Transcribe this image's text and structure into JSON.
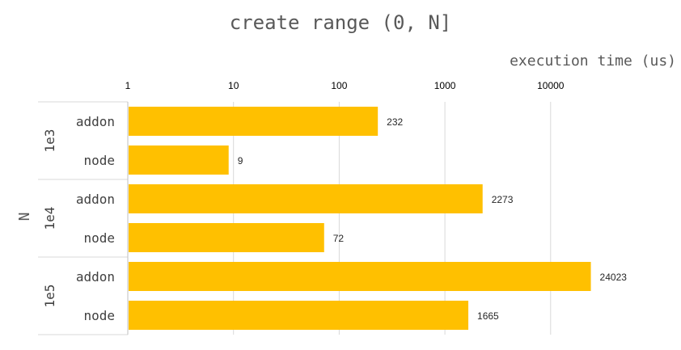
{
  "chart_data": {
    "type": "bar",
    "orientation": "horizontal",
    "title": "create range (0, N]",
    "xlabel": "execution time (us)",
    "ylabel": "N",
    "x_scale": "log",
    "xlim": [
      1,
      100000
    ],
    "x_ticks": [
      "1",
      "10",
      "100",
      "1000",
      "10000"
    ],
    "grid": true,
    "bar_color": "#FFC000",
    "groups": [
      {
        "name": "1e3",
        "bars": [
          {
            "category": "addon",
            "value": 232,
            "label": "232"
          },
          {
            "category": "node",
            "value": 9,
            "label": "9"
          }
        ]
      },
      {
        "name": "1e4",
        "bars": [
          {
            "category": "addon",
            "value": 2273,
            "label": "2273"
          },
          {
            "category": "node",
            "value": 72,
            "label": "72"
          }
        ]
      },
      {
        "name": "1e5",
        "bars": [
          {
            "category": "addon",
            "value": 24023,
            "label": "24023"
          },
          {
            "category": "node",
            "value": 1665,
            "label": "1665"
          }
        ]
      }
    ]
  }
}
